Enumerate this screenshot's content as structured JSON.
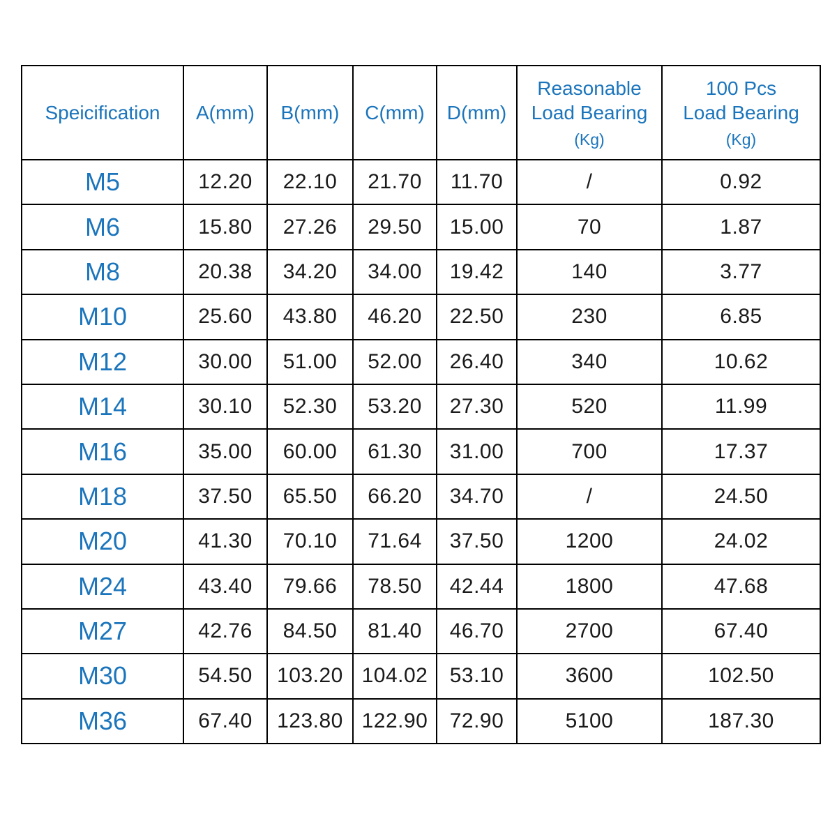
{
  "chart_data": {
    "type": "table",
    "title": "",
    "columns": [
      "Speicification",
      "A(mm)",
      "B(mm)",
      "C(mm)",
      "D(mm)",
      "Reasonable Load Bearing (Kg)",
      "100 Pcs Load Bearing (Kg)"
    ],
    "rows": [
      [
        "M5",
        "12.20",
        "22.10",
        "21.70",
        "11.70",
        "/",
        "0.92"
      ],
      [
        "M6",
        "15.80",
        "27.26",
        "29.50",
        "15.00",
        "70",
        "1.87"
      ],
      [
        "M8",
        "20.38",
        "34.20",
        "34.00",
        "19.42",
        "140",
        "3.77"
      ],
      [
        "M10",
        "25.60",
        "43.80",
        "46.20",
        "22.50",
        "230",
        "6.85"
      ],
      [
        "M12",
        "30.00",
        "51.00",
        "52.00",
        "26.40",
        "340",
        "10.62"
      ],
      [
        "M14",
        "30.10",
        "52.30",
        "53.20",
        "27.30",
        "520",
        "11.99"
      ],
      [
        "M16",
        "35.00",
        "60.00",
        "61.30",
        "31.00",
        "700",
        "17.37"
      ],
      [
        "M18",
        "37.50",
        "65.50",
        "66.20",
        "34.70",
        "/",
        "24.50"
      ],
      [
        "M20",
        "41.30",
        "70.10",
        "71.64",
        "37.50",
        "1200",
        "24.02"
      ],
      [
        "M24",
        "43.40",
        "79.66",
        "78.50",
        "42.44",
        "1800",
        "47.68"
      ],
      [
        "M27",
        "42.76",
        "84.50",
        "81.40",
        "46.70",
        "2700",
        "67.40"
      ],
      [
        "M30",
        "54.50",
        "103.20",
        "104.02",
        "53.10",
        "3600",
        "102.50"
      ],
      [
        "M36",
        "67.40",
        "123.80",
        "122.90",
        "72.90",
        "5100",
        "187.30"
      ]
    ]
  },
  "table": {
    "header_cells": [
      {
        "line1": "Speicification"
      },
      {
        "line1": "A(mm)"
      },
      {
        "line1": "B(mm)"
      },
      {
        "line1": "C(mm)"
      },
      {
        "line1": "D(mm)"
      },
      {
        "line1": "Reasonable",
        "line2": "Load Bearing",
        "sub": "(Kg)"
      },
      {
        "line1": "100 Pcs",
        "line2": "Load Bearing",
        "sub": "(Kg)"
      }
    ]
  },
  "colors": {
    "accent_blue": "#1B75BC",
    "body_text": "#1A1A1A",
    "border": "#000000",
    "background": "#FFFFFF"
  }
}
